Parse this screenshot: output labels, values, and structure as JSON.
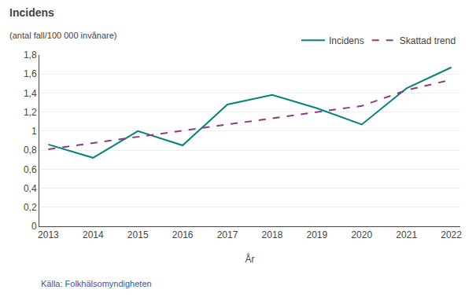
{
  "chart_data": {
    "type": "line",
    "title": "Incidens",
    "subtitle": "(antal fall/100 000 invånare)",
    "xlabel": "År",
    "x": [
      2013,
      2014,
      2015,
      2016,
      2017,
      2018,
      2019,
      2020,
      2021,
      2022
    ],
    "series": [
      {
        "name": "Incidens",
        "color": "#00857A",
        "line_style": "solid",
        "values": [
          0.86,
          0.72,
          1.0,
          0.85,
          1.28,
          1.38,
          1.24,
          1.07,
          1.45,
          1.67
        ]
      },
      {
        "name": "Skattad trend",
        "color": "#8B3A8B",
        "line_style": "dashed",
        "values": [
          0.81,
          0.875,
          0.94,
          1.005,
          1.07,
          1.135,
          1.2,
          1.265,
          1.43,
          1.54
        ]
      }
    ],
    "xlim": [
      2012.8,
      2022.2
    ],
    "xticks": [
      2013,
      2014,
      2015,
      2016,
      2017,
      2018,
      2019,
      2020,
      2021,
      2022
    ],
    "ylim": [
      0,
      1.8
    ],
    "yticks": [
      0,
      {
        "value": 0.2,
        "label": "0,2"
      },
      {
        "value": 0.4,
        "label": "0,4"
      },
      {
        "value": 0.6,
        "label": "0,6"
      },
      {
        "value": 0.8,
        "label": "0,8"
      },
      1,
      {
        "value": 1.2,
        "label": "1,2"
      },
      {
        "value": 1.4,
        "label": "1,4"
      },
      {
        "value": 1.6,
        "label": "1,6"
      },
      {
        "value": 1.8,
        "label": "1,8"
      }
    ],
    "grid": "y",
    "legend": "top",
    "annotations": [
      "Källa: Folkhälsomyndigheten"
    ]
  }
}
